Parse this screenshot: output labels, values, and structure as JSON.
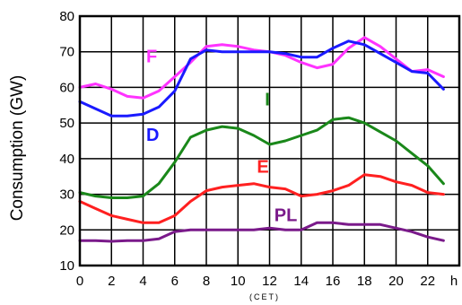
{
  "chart_data": {
    "type": "line",
    "title": "",
    "ylabel": "Consumption (GW)",
    "xlabel": "(CET)",
    "x_unit": "h",
    "xlim": [
      0,
      24
    ],
    "ylim": [
      10,
      80
    ],
    "xticks": [
      0,
      2,
      4,
      6,
      8,
      10,
      12,
      14,
      16,
      18,
      20,
      22
    ],
    "yticks": [
      10,
      20,
      30,
      40,
      50,
      60,
      70,
      80
    ],
    "grid": true,
    "series": [
      {
        "name": "F",
        "color": "#ff33ff",
        "label_at": [
          4.2,
          67
        ],
        "points": [
          [
            0,
            60
          ],
          [
            1,
            61
          ],
          [
            2,
            59.5
          ],
          [
            3,
            57.5
          ],
          [
            4,
            57
          ],
          [
            5,
            59
          ],
          [
            6,
            63
          ],
          [
            7,
            67
          ],
          [
            8,
            71.5
          ],
          [
            9,
            72
          ],
          [
            10,
            71.5
          ],
          [
            11,
            70.5
          ],
          [
            12,
            70
          ],
          [
            13,
            69
          ],
          [
            14,
            67
          ],
          [
            15,
            65.5
          ],
          [
            16,
            66.5
          ],
          [
            17,
            71
          ],
          [
            18,
            74
          ],
          [
            19,
            71.5
          ],
          [
            20,
            68
          ],
          [
            21,
            64.5
          ],
          [
            22,
            65
          ],
          [
            23,
            63
          ]
        ]
      },
      {
        "name": "D",
        "color": "#1a1aff",
        "label_at": [
          4.2,
          45
        ],
        "points": [
          [
            0,
            56
          ],
          [
            1,
            54
          ],
          [
            2,
            52
          ],
          [
            3,
            52
          ],
          [
            4,
            52.5
          ],
          [
            5,
            54.5
          ],
          [
            6,
            59
          ],
          [
            7,
            68
          ],
          [
            8,
            70.5
          ],
          [
            9,
            70
          ],
          [
            10,
            70
          ],
          [
            11,
            70
          ],
          [
            12,
            70
          ],
          [
            13,
            69.5
          ],
          [
            14,
            68.5
          ],
          [
            15,
            68.5
          ],
          [
            16,
            71
          ],
          [
            17,
            73
          ],
          [
            18,
            72
          ],
          [
            19,
            69.5
          ],
          [
            20,
            67
          ],
          [
            21,
            64.5
          ],
          [
            22,
            64
          ],
          [
            23,
            59.5
          ]
        ]
      },
      {
        "name": "I",
        "color": "#1a881a",
        "label_at": [
          11.7,
          55
        ],
        "points": [
          [
            0,
            30.5
          ],
          [
            1,
            29.5
          ],
          [
            2,
            29
          ],
          [
            3,
            29
          ],
          [
            4,
            29.5
          ],
          [
            5,
            33
          ],
          [
            6,
            39
          ],
          [
            7,
            46
          ],
          [
            8,
            48
          ],
          [
            9,
            49
          ],
          [
            10,
            48.5
          ],
          [
            11,
            46.5
          ],
          [
            12,
            44
          ],
          [
            13,
            45
          ],
          [
            14,
            46.5
          ],
          [
            15,
            48
          ],
          [
            16,
            51
          ],
          [
            17,
            51.5
          ],
          [
            18,
            50
          ],
          [
            19,
            47.5
          ],
          [
            20,
            45
          ],
          [
            21,
            41.5
          ],
          [
            22,
            38
          ],
          [
            23,
            33
          ]
        ]
      },
      {
        "name": "E",
        "color": "#ff2020",
        "label_at": [
          11.2,
          36
        ],
        "points": [
          [
            0,
            28
          ],
          [
            1,
            26
          ],
          [
            2,
            24
          ],
          [
            3,
            23
          ],
          [
            4,
            22
          ],
          [
            5,
            22
          ],
          [
            6,
            24
          ],
          [
            7,
            28
          ],
          [
            8,
            31
          ],
          [
            9,
            32
          ],
          [
            10,
            32.5
          ],
          [
            11,
            33
          ],
          [
            12,
            32
          ],
          [
            13,
            31.5
          ],
          [
            14,
            29.5
          ],
          [
            15,
            30
          ],
          [
            16,
            31
          ],
          [
            17,
            32.5
          ],
          [
            18,
            35.5
          ],
          [
            19,
            35
          ],
          [
            20,
            33.5
          ],
          [
            21,
            32.5
          ],
          [
            22,
            30.5
          ],
          [
            23,
            30
          ]
        ]
      },
      {
        "name": "PL",
        "color": "#7a1a8a",
        "label_at": [
          12.3,
          22.5
        ],
        "points": [
          [
            0,
            17
          ],
          [
            1,
            17
          ],
          [
            2,
            16.8
          ],
          [
            3,
            17
          ],
          [
            4,
            17
          ],
          [
            5,
            17.5
          ],
          [
            6,
            19.5
          ],
          [
            7,
            20
          ],
          [
            8,
            20
          ],
          [
            9,
            20
          ],
          [
            10,
            20
          ],
          [
            11,
            20
          ],
          [
            12,
            20.5
          ],
          [
            13,
            20
          ],
          [
            14,
            20
          ],
          [
            15,
            22
          ],
          [
            16,
            22
          ],
          [
            17,
            21.5
          ],
          [
            18,
            21.5
          ],
          [
            19,
            21.5
          ],
          [
            20,
            20.5
          ],
          [
            21,
            19.5
          ],
          [
            22,
            18
          ],
          [
            23,
            17
          ]
        ]
      }
    ]
  }
}
